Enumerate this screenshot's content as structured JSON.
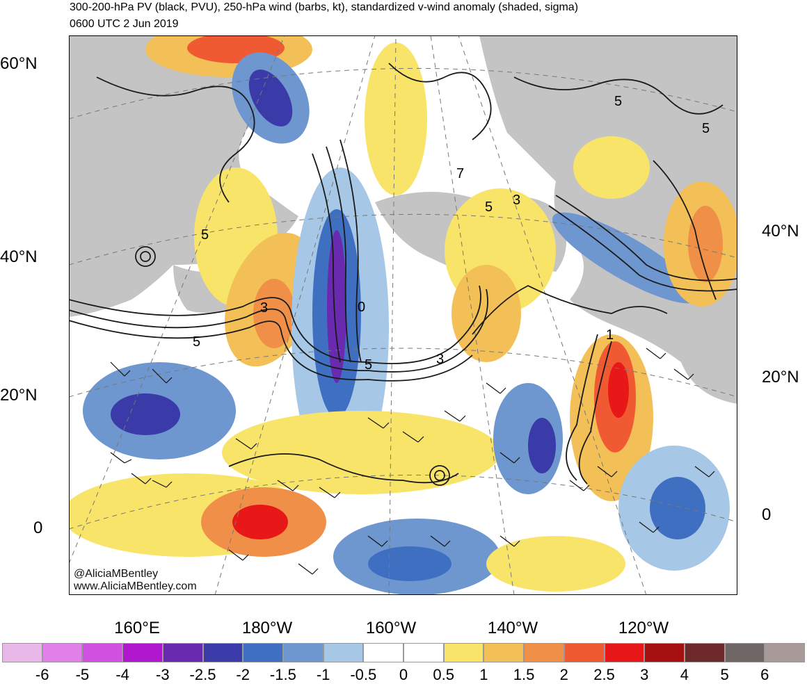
{
  "title_line1": "300-200-hPa PV (black, PVU), 250-hPa wind (barbs, kt), standardized v-wind anomaly (shaded, sigma)",
  "title_line2": "0600 UTC 2 Jun 2019",
  "credit_line1": "@AliciaMBentley",
  "credit_line2": "www.AliciaMBentley.com",
  "lat_labels_left": [
    "60°N",
    "40°N",
    "20°N",
    "0"
  ],
  "lat_labels_right": [
    "40°N",
    "20°N",
    "0"
  ],
  "lon_labels": [
    "160°E",
    "180°W",
    "160°W",
    "140°W",
    "120°W"
  ],
  "contour_labels": [
    "5",
    "5",
    "3",
    "5",
    "3",
    "7",
    "5",
    "3",
    "1",
    "5",
    "5",
    "0"
  ],
  "colorbar": {
    "labels": [
      "-6",
      "-5",
      "-4",
      "-3",
      "-2.5",
      "-2",
      "-1.5",
      "-1",
      "-0.5",
      "0",
      "0.5",
      "1",
      "1.5",
      "2",
      "2.5",
      "3",
      "4",
      "5",
      "6"
    ],
    "colors": [
      "#e8b8e8",
      "#e080e8",
      "#d050e0",
      "#b018d0",
      "#6a2ab0",
      "#3a3aa8",
      "#3f6fc0",
      "#6e97d0",
      "#a6c8e6",
      "#ffffff",
      "#ffffff",
      "#f9e46a",
      "#f2c057",
      "#f09048",
      "#f05a32",
      "#e81818",
      "#a40f0f",
      "#6e2a2a",
      "#706565",
      "#a89a98"
    ]
  },
  "colors": {
    "land": "#c4c4c4",
    "pv_contour": "#1a1a1a",
    "barb": "#111111",
    "graticule": "#777777"
  }
}
